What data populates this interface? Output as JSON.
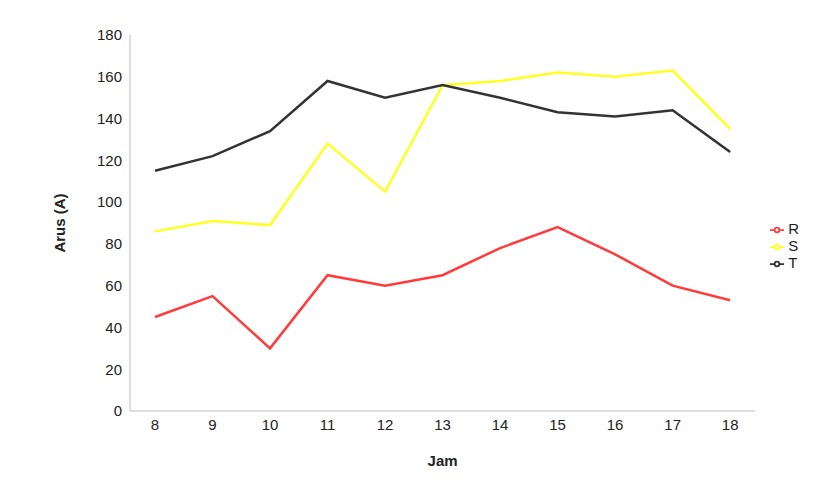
{
  "chart_data": {
    "type": "line",
    "x_label": "Jam",
    "y_label": "Arus (A)",
    "categories": [
      "8",
      "9",
      "10",
      "11",
      "12",
      "13",
      "14",
      "15",
      "16",
      "17",
      "18"
    ],
    "series": [
      {
        "name": "R",
        "color": "#ff3b3b",
        "values": [
          45,
          55,
          30,
          65,
          60,
          65,
          78,
          88,
          75,
          60,
          53
        ]
      },
      {
        "name": "S",
        "color": "#ffff22",
        "values": [
          86,
          91,
          89,
          128,
          105,
          156,
          158,
          162,
          160,
          163,
          135
        ]
      },
      {
        "name": "T",
        "color": "#333333",
        "values": [
          115,
          122,
          134,
          158,
          150,
          156,
          150,
          143,
          141,
          144,
          124
        ]
      }
    ],
    "ylim": [
      0,
      180
    ],
    "yticks": [
      0,
      20,
      40,
      60,
      80,
      100,
      120,
      140,
      160,
      180
    ],
    "grid": false,
    "legend": "right"
  }
}
